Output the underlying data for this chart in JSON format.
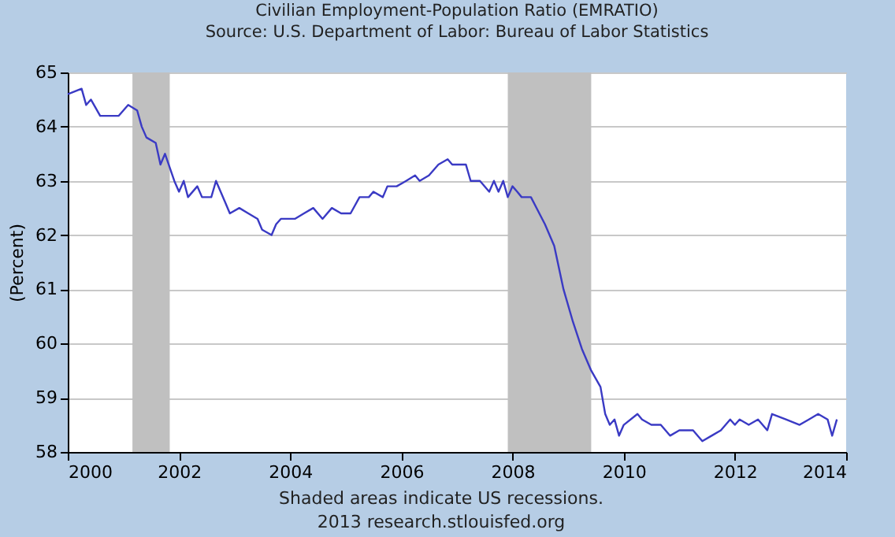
{
  "chart_data": {
    "type": "line",
    "title": "Civilian Employment-Population Ratio (EMRATIO)",
    "subtitle": "Source: U.S. Department of Labor: Bureau of Labor Statistics",
    "ylabel": "(Percent)",
    "x": [
      "2000-01",
      "2000-04",
      "2000-05",
      "2000-06",
      "2000-08",
      "2000-12",
      "2001-02",
      "2001-04",
      "2001-05",
      "2001-06",
      "2001-08",
      "2001-09",
      "2001-10",
      "2001-12",
      "2002-01",
      "2002-02",
      "2002-03",
      "2002-05",
      "2002-06",
      "2002-08",
      "2002-09",
      "2002-11",
      "2002-12",
      "2003-02",
      "2003-04",
      "2003-06",
      "2003-07",
      "2003-09",
      "2003-10",
      "2003-11",
      "2004-02",
      "2004-04",
      "2004-06",
      "2004-08",
      "2004-10",
      "2004-12",
      "2005-02",
      "2005-04",
      "2005-06",
      "2005-07",
      "2005-09",
      "2005-10",
      "2005-12",
      "2006-02",
      "2006-04",
      "2006-05",
      "2006-07",
      "2006-09",
      "2006-11",
      "2006-12",
      "2007-03",
      "2007-04",
      "2007-06",
      "2007-08",
      "2007-09",
      "2007-10",
      "2007-11",
      "2007-12",
      "2008-01",
      "2008-02",
      "2008-03",
      "2008-05",
      "2008-08",
      "2008-10",
      "2008-12",
      "2009-02",
      "2009-04",
      "2009-06",
      "2009-08",
      "2009-09",
      "2009-10",
      "2009-11",
      "2009-12",
      "2010-01",
      "2010-04",
      "2010-05",
      "2010-07",
      "2010-09",
      "2010-11",
      "2011-01",
      "2011-04",
      "2011-06",
      "2011-08",
      "2011-10",
      "2011-12",
      "2012-01",
      "2012-02",
      "2012-04",
      "2012-06",
      "2012-08",
      "2012-09",
      "2012-12",
      "2013-03",
      "2013-05",
      "2013-07",
      "2013-09",
      "2013-10",
      "2013-11"
    ],
    "series": [
      {
        "color": "#3a3ac4",
        "values": [
          64.6,
          64.7,
          64.4,
          64.5,
          64.2,
          64.2,
          64.4,
          64.3,
          64.0,
          63.8,
          63.7,
          63.3,
          63.5,
          63.0,
          62.8,
          63.0,
          62.7,
          62.9,
          62.7,
          62.7,
          63.0,
          62.6,
          62.4,
          62.5,
          62.4,
          62.3,
          62.1,
          62.0,
          62.2,
          62.3,
          62.3,
          62.4,
          62.5,
          62.3,
          62.5,
          62.4,
          62.4,
          62.7,
          62.7,
          62.8,
          62.7,
          62.9,
          62.9,
          63.0,
          63.1,
          63.0,
          63.1,
          63.3,
          63.4,
          63.3,
          63.3,
          63.0,
          63.0,
          62.8,
          63.0,
          62.8,
          63.0,
          62.7,
          62.9,
          62.8,
          62.7,
          62.7,
          62.2,
          61.8,
          61.0,
          60.4,
          59.9,
          59.5,
          59.2,
          58.7,
          58.5,
          58.6,
          58.3,
          58.5,
          58.7,
          58.6,
          58.5,
          58.5,
          58.3,
          58.4,
          58.4,
          58.2,
          58.3,
          58.4,
          58.6,
          58.5,
          58.6,
          58.5,
          58.6,
          58.4,
          58.7,
          58.6,
          58.5,
          58.6,
          58.7,
          58.6,
          58.3,
          58.6
        ]
      }
    ],
    "xlim": [
      "2000-01-01",
      "2014-01-01"
    ],
    "xticks": [
      {
        "value": "2000-01-01",
        "label": "2000"
      },
      {
        "value": "2002-01-01",
        "label": "2002"
      },
      {
        "value": "2004-01-01",
        "label": "2004"
      },
      {
        "value": "2006-01-01",
        "label": "2006"
      },
      {
        "value": "2008-01-01",
        "label": "2008"
      },
      {
        "value": "2010-01-01",
        "label": "2010"
      },
      {
        "value": "2012-01-01",
        "label": "2012"
      },
      {
        "value": "2014-01-01",
        "label": "2014"
      }
    ],
    "ylim": [
      58,
      65
    ],
    "yticks": [
      58,
      59,
      60,
      61,
      62,
      63,
      64,
      65
    ],
    "bands": [
      {
        "axis": "x",
        "from": "2001-03",
        "to": "2001-11",
        "color": "#c0c0c0"
      },
      {
        "axis": "x",
        "from": "2007-12",
        "to": "2009-06",
        "color": "#c0c0c0"
      }
    ],
    "grid": "y",
    "line_style": "solid",
    "annotations": [
      "Shaded areas indicate US recessions.",
      "2013 research.stlouisfed.org"
    ]
  }
}
